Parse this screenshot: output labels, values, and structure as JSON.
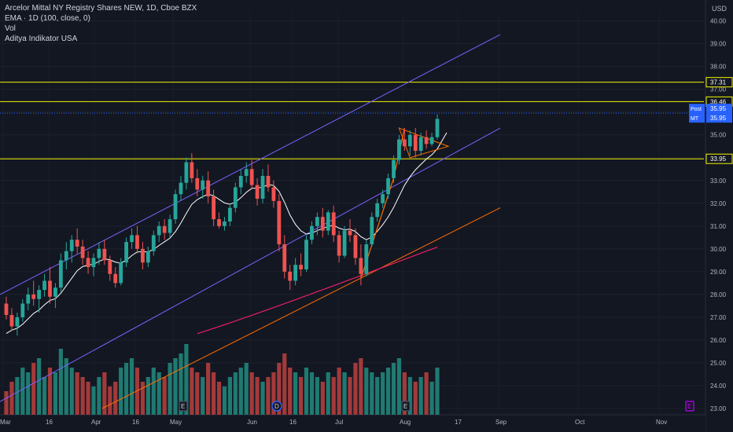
{
  "legend": {
    "title": "Arcelor Mittal NY Registry Shares NEW, 1D, Cboe BZX",
    "ema": "EMA · 1D (100, close, 0)",
    "vol": "Vol",
    "indicator": "Aditya Indikator USA"
  },
  "currency": "USD",
  "colors": {
    "background": "#131722",
    "up": "#26a69a",
    "down": "#ef5350",
    "vol_up": "#1f7a71",
    "vol_down": "#a33a3a",
    "channel": "#7b61ff",
    "ema": "#e91e63",
    "trend": "#ff6d00",
    "white_line": "#ffffff",
    "hline": "#f5f500",
    "post_badge": "#2962ff",
    "event_e": "#c000ff"
  },
  "price_axis": {
    "ticks": [
      "40.00",
      "39.00",
      "38.00",
      "37.00",
      "36.00",
      "35.00",
      "34.00",
      "33.00",
      "32.00",
      "31.00",
      "30.00",
      "29.00",
      "28.00",
      "27.00",
      "26.00",
      "25.00",
      "24.00",
      "23.00"
    ]
  },
  "price_labels": [
    {
      "value": "37.31",
      "kind": "level"
    },
    {
      "value": "36.46",
      "kind": "level"
    },
    {
      "value": "35.95",
      "kind": "post",
      "tag": "Post"
    },
    {
      "value": "35.95",
      "kind": "mt",
      "tag": "MT"
    },
    {
      "value": "33.95",
      "kind": "level"
    }
  ],
  "time_axis": {
    "labels": [
      "Mar",
      "16",
      "Apr",
      "16",
      "May",
      "Jun",
      "16",
      "Jul",
      "Aug",
      "17",
      "Sep",
      "Oct",
      "Nov"
    ]
  },
  "event_markers": [
    {
      "letter": "E",
      "kind": "earnings"
    },
    {
      "letter": "D",
      "kind": "dividend"
    },
    {
      "letter": "E",
      "kind": "earnings"
    },
    {
      "letter": "E",
      "kind": "upcoming"
    }
  ],
  "chart_data": {
    "type": "candlestick",
    "series_name": "Arcelor Mittal NY Registry Shares NEW",
    "timeframe": "1D",
    "y_range": [
      23.0,
      40.4
    ],
    "horizontal_levels": [
      37.31,
      36.46,
      33.95
    ],
    "post_market": 35.95,
    "candles": [
      [
        27.6,
        27.9,
        26.9,
        27.1
      ],
      [
        27.1,
        27.4,
        26.4,
        26.6
      ],
      [
        26.6,
        27.2,
        26.2,
        27.0
      ],
      [
        27.0,
        27.8,
        26.8,
        27.6
      ],
      [
        27.6,
        28.3,
        27.3,
        28.0
      ],
      [
        28.0,
        28.6,
        27.5,
        27.8
      ],
      [
        27.8,
        28.4,
        27.2,
        28.2
      ],
      [
        28.2,
        28.9,
        27.9,
        28.6
      ],
      [
        28.6,
        29.2,
        27.6,
        27.9
      ],
      [
        27.9,
        28.5,
        27.4,
        28.3
      ],
      [
        28.3,
        29.8,
        28.1,
        29.5
      ],
      [
        29.5,
        30.3,
        29.1,
        29.9
      ],
      [
        29.9,
        30.6,
        29.4,
        30.4
      ],
      [
        30.4,
        30.9,
        29.8,
        30.1
      ],
      [
        30.1,
        30.4,
        29.3,
        29.6
      ],
      [
        29.6,
        29.9,
        28.9,
        29.2
      ],
      [
        29.2,
        29.8,
        28.8,
        29.6
      ],
      [
        29.6,
        30.3,
        29.3,
        30.0
      ],
      [
        30.0,
        30.4,
        29.3,
        29.5
      ],
      [
        29.5,
        29.7,
        28.6,
        28.9
      ],
      [
        28.9,
        29.2,
        28.3,
        28.5
      ],
      [
        28.5,
        29.6,
        28.4,
        29.4
      ],
      [
        29.4,
        30.5,
        29.2,
        30.3
      ],
      [
        30.3,
        30.9,
        30.0,
        30.6
      ],
      [
        30.6,
        31.0,
        29.8,
        30.0
      ],
      [
        30.0,
        30.3,
        29.1,
        29.4
      ],
      [
        29.4,
        30.1,
        29.2,
        29.9
      ],
      [
        29.9,
        30.8,
        29.7,
        30.6
      ],
      [
        30.6,
        31.2,
        30.3,
        31.0
      ],
      [
        31.0,
        31.3,
        30.4,
        30.7
      ],
      [
        30.7,
        31.5,
        30.5,
        31.3
      ],
      [
        31.3,
        32.6,
        31.1,
        32.4
      ],
      [
        32.4,
        33.2,
        32.1,
        32.9
      ],
      [
        32.9,
        34.0,
        32.6,
        33.8
      ],
      [
        33.8,
        34.2,
        32.9,
        33.1
      ],
      [
        33.1,
        33.5,
        32.3,
        32.6
      ],
      [
        32.6,
        33.2,
        32.2,
        33.0
      ],
      [
        33.0,
        33.4,
        32.0,
        32.3
      ],
      [
        32.3,
        32.6,
        31.0,
        31.3
      ],
      [
        31.3,
        31.6,
        30.9,
        31.0
      ],
      [
        31.0,
        31.4,
        30.8,
        31.2
      ],
      [
        31.2,
        32.0,
        31.0,
        31.8
      ],
      [
        31.8,
        32.9,
        31.6,
        32.7
      ],
      [
        32.7,
        33.5,
        32.4,
        33.2
      ],
      [
        33.2,
        33.8,
        32.9,
        33.5
      ],
      [
        33.5,
        33.9,
        32.6,
        32.8
      ],
      [
        32.8,
        33.1,
        31.9,
        32.2
      ],
      [
        32.2,
        33.5,
        32.0,
        33.2
      ],
      [
        33.2,
        33.7,
        32.5,
        32.7
      ],
      [
        32.7,
        33.0,
        31.8,
        32.1
      ],
      [
        32.1,
        32.4,
        29.9,
        30.2
      ],
      [
        30.2,
        30.6,
        28.7,
        29.0
      ],
      [
        29.0,
        29.3,
        28.2,
        28.6
      ],
      [
        28.6,
        29.6,
        28.4,
        29.3
      ],
      [
        29.3,
        29.8,
        28.8,
        29.1
      ],
      [
        29.1,
        30.6,
        29.0,
        30.4
      ],
      [
        30.4,
        31.2,
        30.2,
        31.0
      ],
      [
        31.0,
        31.6,
        30.6,
        31.4
      ],
      [
        31.4,
        31.8,
        30.5,
        30.8
      ],
      [
        30.8,
        31.7,
        30.6,
        31.6
      ],
      [
        31.6,
        31.9,
        30.3,
        30.6
      ],
      [
        30.6,
        30.8,
        29.4,
        29.7
      ],
      [
        29.7,
        31.0,
        29.6,
        30.8
      ],
      [
        30.8,
        31.3,
        30.3,
        30.6
      ],
      [
        30.6,
        30.9,
        29.3,
        29.6
      ],
      [
        29.6,
        30.2,
        28.4,
        28.9
      ],
      [
        28.9,
        30.4,
        28.8,
        30.2
      ],
      [
        30.2,
        31.6,
        30.1,
        31.4
      ],
      [
        31.4,
        32.2,
        31.2,
        32.0
      ],
      [
        32.0,
        32.6,
        31.8,
        32.4
      ],
      [
        32.4,
        33.3,
        32.2,
        33.1
      ],
      [
        33.1,
        34.1,
        32.9,
        33.9
      ],
      [
        33.9,
        35.0,
        33.7,
        34.8
      ],
      [
        34.8,
        35.3,
        34.3,
        34.5
      ],
      [
        34.5,
        35.2,
        34.1,
        35.0
      ],
      [
        35.0,
        35.3,
        34.0,
        34.3
      ],
      [
        34.3,
        35.1,
        34.1,
        34.9
      ],
      [
        34.9,
        35.2,
        34.4,
        34.6
      ],
      [
        34.6,
        35.1,
        34.5,
        34.9
      ],
      [
        34.9,
        35.9,
        34.8,
        35.7
      ]
    ],
    "volume": [
      0.25,
      0.35,
      0.4,
      0.5,
      0.45,
      0.55,
      0.6,
      0.4,
      0.5,
      0.45,
      0.7,
      0.6,
      0.5,
      0.45,
      0.4,
      0.35,
      0.3,
      0.4,
      0.45,
      0.3,
      0.35,
      0.5,
      0.55,
      0.6,
      0.5,
      0.35,
      0.4,
      0.5,
      0.45,
      0.4,
      0.55,
      0.6,
      0.65,
      0.75,
      0.5,
      0.45,
      0.4,
      0.55,
      0.45,
      0.35,
      0.3,
      0.4,
      0.45,
      0.5,
      0.55,
      0.45,
      0.4,
      0.35,
      0.4,
      0.45,
      0.55,
      0.65,
      0.5,
      0.45,
      0.4,
      0.5,
      0.45,
      0.4,
      0.35,
      0.45,
      0.4,
      0.5,
      0.45,
      0.4,
      0.55,
      0.6,
      0.5,
      0.45,
      0.4,
      0.45,
      0.5,
      0.55,
      0.6,
      0.45,
      0.4,
      0.35,
      0.4,
      0.45,
      0.35,
      0.5
    ]
  }
}
